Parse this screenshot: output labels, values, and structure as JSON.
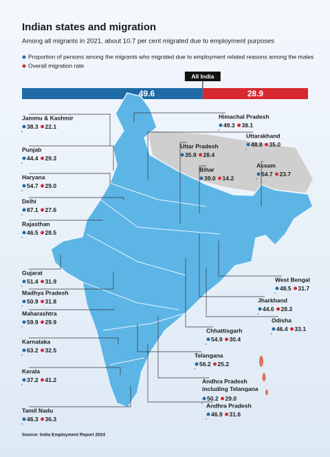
{
  "header": {
    "title": "Indian states and migration",
    "subtitle": "Among all migrants in 2021, about 10.7 per cent migrated due to employment purposes"
  },
  "legend": [
    {
      "label": "Proportion of persons among the migrants who migrated due to employment related reasons among the males",
      "color": "#1e6aa6"
    },
    {
      "label": "Overall migration rate",
      "color": "#d7282f"
    }
  ],
  "all_india": {
    "label": "All India",
    "values": [
      49.6,
      28.9
    ]
  },
  "states": [
    {
      "name": "Jammu & Kashmir",
      "values": [
        38.3,
        22.1
      ]
    },
    {
      "name": "Punjab",
      "values": [
        44.4,
        29.3
      ]
    },
    {
      "name": "Haryana",
      "values": [
        54.7,
        29.0
      ],
      "value_labels": [
        "54.7",
        "29.0"
      ]
    },
    {
      "name": "Delhi",
      "values": [
        87.1,
        27.6
      ]
    },
    {
      "name": "Rajasthan",
      "values": [
        46.5,
        28.5
      ]
    },
    {
      "name": "Gujarat",
      "values": [
        51.4,
        31.9
      ]
    },
    {
      "name": "Madhya Pradesh",
      "values": [
        50.9,
        31.8
      ]
    },
    {
      "name": "Maharashtra",
      "values": [
        59.9,
        29.9
      ]
    },
    {
      "name": "Karnataka",
      "values": [
        63.2,
        32.5
      ]
    },
    {
      "name": "Kerala",
      "values": [
        37.2,
        41.2
      ]
    },
    {
      "name": "Tamil Nadu",
      "values": [
        46.3,
        36.3
      ]
    },
    {
      "name": "Himachal Pradesh",
      "values": [
        49.3,
        38.1
      ]
    },
    {
      "name": "Uttarakhand",
      "values": [
        48.8,
        35.0
      ],
      "value_labels": [
        "48.8",
        "35.0"
      ]
    },
    {
      "name": "Uttar Pradesh",
      "values": [
        35.9,
        28.4
      ]
    },
    {
      "name": "Bihar",
      "values": [
        39.0,
        14.2
      ],
      "value_labels": [
        "39.0",
        "14.2"
      ]
    },
    {
      "name": "Assam",
      "values": [
        54.7,
        23.7
      ]
    },
    {
      "name": "West Bengal",
      "values": [
        48.5,
        31.7
      ]
    },
    {
      "name": "Jharkhand",
      "values": [
        44.6,
        28.3
      ]
    },
    {
      "name": "Odisha",
      "values": [
        46.4,
        33.1
      ]
    },
    {
      "name": "Chhattisgarh",
      "values": [
        54.9,
        30.4
      ]
    },
    {
      "name": "Telangana",
      "values": [
        56.2,
        25.2
      ]
    },
    {
      "name": "Andhra Pradesh including Telangana",
      "values": [
        50.2,
        29.0
      ],
      "value_labels": [
        "50.2",
        "29.0"
      ]
    },
    {
      "name": "Andhra Pradesh",
      "values": [
        46.9,
        31.6
      ]
    }
  ],
  "source": "Source: India Employment Report 2024"
}
